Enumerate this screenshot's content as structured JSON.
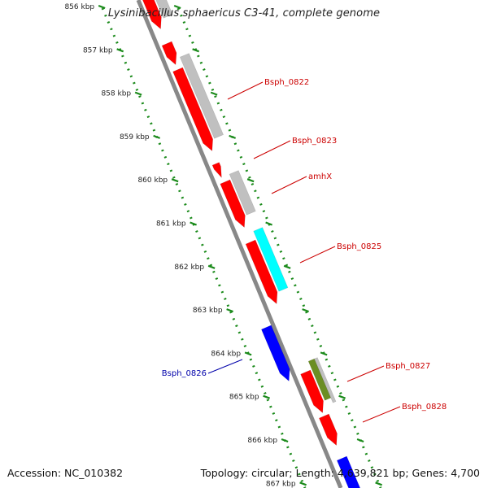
{
  "title": "Lysinibacillus sphaericus C3-41, complete genome",
  "footer": {
    "accession": "Accession: NC_010382",
    "summary": "Topology: circular; Length: 4,639,821 bp; Genes: 4,700"
  },
  "ticks": [
    "856 kbp",
    "857 kbp",
    "858 kbp",
    "859 kbp",
    "860 kbp",
    "861 kbp",
    "862 kbp",
    "863 kbp",
    "864 kbp",
    "865 kbp",
    "866 kbp",
    "867 kbp"
  ],
  "gene_labels": [
    {
      "name": "Bsph_0822",
      "color": "#cc0000"
    },
    {
      "name": "Bsph_0823",
      "color": "#cc0000"
    },
    {
      "name": "amhX",
      "color": "#cc0000"
    },
    {
      "name": "Bsph_0825",
      "color": "#cc0000"
    },
    {
      "name": "Bsph_0826",
      "color": "#0000aa"
    },
    {
      "name": "Bsph_0827",
      "color": "#cc0000"
    },
    {
      "name": "Bsph_0828",
      "color": "#cc0000"
    }
  ],
  "colors": {
    "backbone": "#888888",
    "tick_dots": "#1a8a1a",
    "gene_red": "#ff0000",
    "gene_gray": "#c0c0c0",
    "gene_cyan": "#00ffff",
    "gene_blue": "#0000ff",
    "gene_olive": "#6b8e23"
  }
}
